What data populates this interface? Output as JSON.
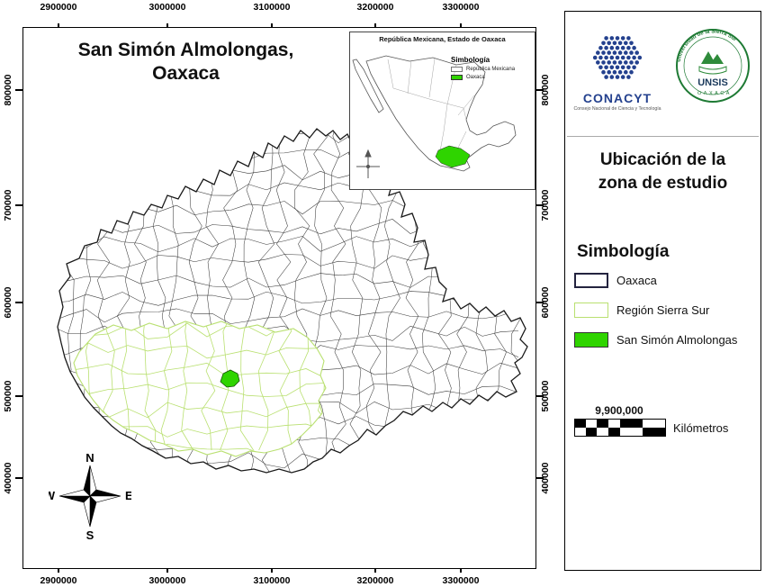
{
  "title": {
    "line1": "San Simón Almolongas,",
    "line2": "Oaxaca"
  },
  "frame": {
    "x_ticks": [
      "2900000",
      "3000000",
      "3100000",
      "3200000",
      "3300000"
    ],
    "y_ticks": [
      "800000",
      "700000",
      "600000",
      "500000",
      "400000"
    ]
  },
  "compass": {
    "north": "N",
    "south": "S",
    "east": "E",
    "west": "W"
  },
  "inset": {
    "title": "República Mexicana, Estado de Oaxaca",
    "legend_title": "Simbología",
    "legend": [
      {
        "label": "República Mexicana",
        "fill": "#ffffff",
        "border": "#777777"
      },
      {
        "label": "Oaxaca",
        "fill": "#2fd400",
        "border": "#333333"
      }
    ]
  },
  "panel": {
    "conacyt_name": "CONACYT",
    "conacyt_tagline": "Consejo Nacional de Ciencia y Tecnología",
    "unsis_name": "UNSIS",
    "unsis_arc_top": "Universidad de la Sierra Sur",
    "unsis_bottom": "OAXACA",
    "heading": {
      "line1": "Ubicación de la",
      "line2": "zona de estudio"
    },
    "legend_title": "Simbología",
    "legend": [
      {
        "label": "Oaxaca",
        "fill": "#ffffff",
        "border": "#23233f"
      },
      {
        "label": "Región Sierra Sur",
        "fill": "#ffffff",
        "border": "#b9e070"
      },
      {
        "label": "San Simón Almolongas",
        "fill": "#2fd400",
        "border": "#333333"
      }
    ],
    "scale": {
      "value": "9,900,000",
      "unit": "Kilómetros"
    }
  },
  "colors": {
    "highlight_green": "#2fd400",
    "sierra_green": "#b9e070",
    "conacyt_blue": "#24418e",
    "unsis_green": "#1e7a34"
  }
}
